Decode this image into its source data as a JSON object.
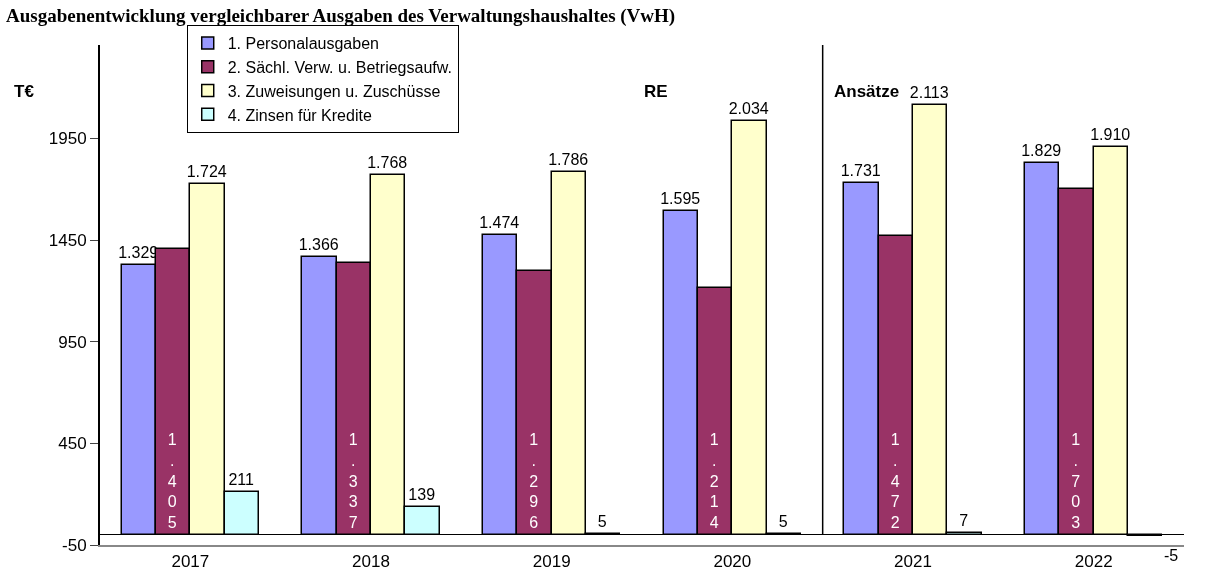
{
  "chart_data": {
    "type": "bar",
    "title": "Ausgabenentwicklung vergleichbarer Ausgaben des Verwaltungshaushaltes (VwH)",
    "ylabel": "T€",
    "categories": [
      "2017",
      "2018",
      "2019",
      "2020",
      "2021",
      "2022"
    ],
    "series": [
      {
        "name": "1. Personalausgaben",
        "color": "#9999ff",
        "values": [
          1329,
          1366,
          1474,
          1595,
          1731,
          1829
        ],
        "value_labels": [
          "1.329",
          "1.366",
          "1.474",
          "1.595",
          "1.731",
          "1.829"
        ]
      },
      {
        "name": "2. Sächl. Verw. u. Betriegsaufw.",
        "color": "#993366",
        "values": [
          1405,
          1337,
          1296,
          1214,
          1472,
          1703
        ],
        "value_labels": [
          "1.405",
          "1.337",
          "1.296",
          "1.214",
          "1.472",
          "1.703"
        ]
      },
      {
        "name": "3. Zuweisungen u. Zuschüsse",
        "color": "#ffffcc",
        "values": [
          1724,
          1768,
          1786,
          2034,
          2113,
          1910
        ],
        "value_labels": [
          "1.724",
          "1.768",
          "1.786",
          "2.034",
          "2.113",
          "1.910"
        ]
      },
      {
        "name": "4. Zinsen für Kredite",
        "color": "#ccffff",
        "values": [
          211,
          139,
          5,
          5,
          7,
          -5
        ],
        "value_labels": [
          "211",
          "139",
          "5",
          "5",
          "7",
          "-5"
        ]
      }
    ],
    "ylim": [
      -50,
      2410
    ],
    "yticks": [
      -50,
      450,
      950,
      1450,
      1950
    ],
    "grid": false,
    "legend": "top left",
    "annotations": [
      "RE",
      "Ansätze"
    ]
  }
}
